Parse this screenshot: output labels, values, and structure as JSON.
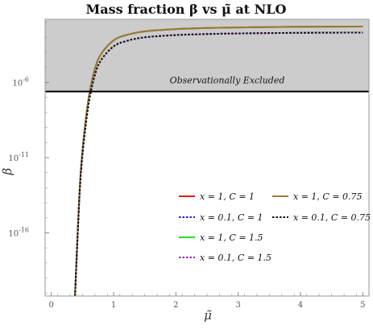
{
  "chart_data": {
    "type": "line",
    "title": "Mass fraction β vs μ̃ at NLO",
    "xlabel": "μ̃",
    "ylabel": "β",
    "xlim": [
      -0.1,
      5.1
    ],
    "ylim_log10": [
      -20.2,
      -1.8
    ],
    "x_ticks": [
      {
        "value": 0,
        "label": "0"
      },
      {
        "value": 1,
        "label": "1"
      },
      {
        "value": 2,
        "label": "2"
      },
      {
        "value": 3,
        "label": "3"
      },
      {
        "value": 4,
        "label": "4"
      },
      {
        "value": 5,
        "label": "5"
      }
    ],
    "y_ticks": [
      {
        "log10": -6,
        "label": "10^-6"
      },
      {
        "log10": -11,
        "label": "10^-11"
      },
      {
        "log10": -16,
        "label": "10^-16"
      }
    ],
    "excluded_region": {
      "log10_from": -6.6,
      "label": "Observationally Excluded",
      "color": "#cccccc",
      "boundary_color": "#000000"
    },
    "legend_placement": "lower-right",
    "series": [
      {
        "name": "x = 1,  C = 1",
        "color": "#e41a1c",
        "dash": "solid",
        "x": [
          0.38,
          0.45,
          0.5,
          0.6,
          0.7,
          0.8,
          1.0,
          1.2,
          1.5,
          2.0,
          2.5,
          3.0,
          4.0,
          5.0
        ],
        "log10": [
          -20.2,
          -13.5,
          -10.5,
          -7.0,
          -5.1,
          -4.1,
          -3.2,
          -2.85,
          -2.6,
          -2.45,
          -2.38,
          -2.34,
          -2.3,
          -2.28
        ]
      },
      {
        "name": "x = 0.1,  C = 1",
        "color": "#2020c8",
        "dash": "dotted",
        "x": [
          0.38,
          0.45,
          0.5,
          0.6,
          0.7,
          0.8,
          1.0,
          1.2,
          1.5,
          2.0,
          2.5,
          3.0,
          4.0,
          5.0
        ],
        "log10": [
          -20.2,
          -13.7,
          -10.8,
          -7.4,
          -5.5,
          -4.5,
          -3.6,
          -3.25,
          -3.0,
          -2.85,
          -2.78,
          -2.74,
          -2.7,
          -2.68
        ]
      },
      {
        "name": "x = 1,  C = 1.5",
        "color": "#22dd22",
        "dash": "solid",
        "x": [
          0.38,
          0.45,
          0.5,
          0.6,
          0.7,
          0.8,
          1.0,
          1.2,
          1.5,
          2.0,
          2.5,
          3.0,
          4.0,
          5.0
        ],
        "log10": [
          -20.2,
          -13.5,
          -10.5,
          -7.0,
          -5.1,
          -4.1,
          -3.2,
          -2.85,
          -2.6,
          -2.45,
          -2.38,
          -2.34,
          -2.3,
          -2.28
        ]
      },
      {
        "name": "x = 0.1,  C = 1.5",
        "color": "#9a2aa8",
        "dash": "dotted",
        "x": [
          0.38,
          0.45,
          0.5,
          0.6,
          0.7,
          0.8,
          1.0,
          1.2,
          1.5,
          2.0,
          2.5,
          3.0,
          4.0,
          5.0
        ],
        "log10": [
          -20.2,
          -13.7,
          -10.8,
          -7.4,
          -5.5,
          -4.5,
          -3.6,
          -3.25,
          -3.0,
          -2.85,
          -2.78,
          -2.74,
          -2.7,
          -2.68
        ]
      },
      {
        "name": "x = 1,  C = 0.75",
        "color": "#9b7738",
        "dash": "solid",
        "x": [
          0.38,
          0.45,
          0.5,
          0.6,
          0.7,
          0.8,
          1.0,
          1.2,
          1.5,
          2.0,
          2.5,
          3.0,
          4.0,
          5.0
        ],
        "log10": [
          -20.2,
          -13.5,
          -10.5,
          -7.0,
          -5.1,
          -4.1,
          -3.2,
          -2.85,
          -2.6,
          -2.45,
          -2.38,
          -2.34,
          -2.3,
          -2.28
        ]
      },
      {
        "name": "x = 0.1,  C = 0.75",
        "color": "#111111",
        "dash": "dotted",
        "x": [
          0.38,
          0.45,
          0.5,
          0.6,
          0.7,
          0.8,
          1.0,
          1.2,
          1.5,
          2.0,
          2.5,
          3.0,
          4.0,
          5.0
        ],
        "log10": [
          -20.2,
          -13.7,
          -10.8,
          -7.4,
          -5.5,
          -4.5,
          -3.6,
          -3.25,
          -3.0,
          -2.85,
          -2.78,
          -2.74,
          -2.7,
          -2.68
        ]
      }
    ]
  }
}
